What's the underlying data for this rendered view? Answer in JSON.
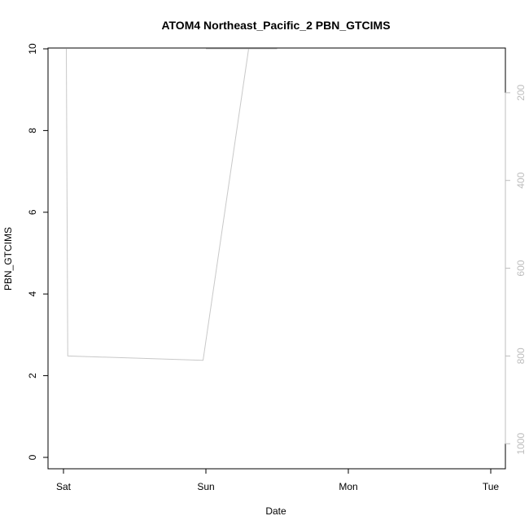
{
  "chart_data": {
    "type": "scatter",
    "title": "ATOM4 Northeast_Pacific_2 PBN_GTCIMS",
    "xlabel": "Date",
    "ylabel": "PBN_GTCIMS",
    "x_ticks": [
      "Sat",
      "Sun",
      "Mon",
      "Tue"
    ],
    "ylim": [
      0,
      10
    ],
    "y_ticks": [
      0,
      2,
      4,
      6,
      8,
      10
    ],
    "y2_ticks": [
      200,
      400,
      600,
      800,
      1000
    ],
    "y2_range": [
      100,
      1020
    ],
    "y2_inverted": true,
    "grid": false,
    "colors": {
      "points": "#e6157a",
      "pressure_line": "#c8c8c8",
      "axis": "#000000",
      "right_axis": "#bdbdbd"
    },
    "pressure_line": {
      "x": [
        0.02,
        0.03,
        0.98,
        1.3,
        1.35,
        1.0,
        1.5
      ],
      "y": [
        100,
        800,
        810,
        100,
        100,
        100,
        100
      ]
    },
    "series": [
      {
        "values": []
      }
    ]
  }
}
